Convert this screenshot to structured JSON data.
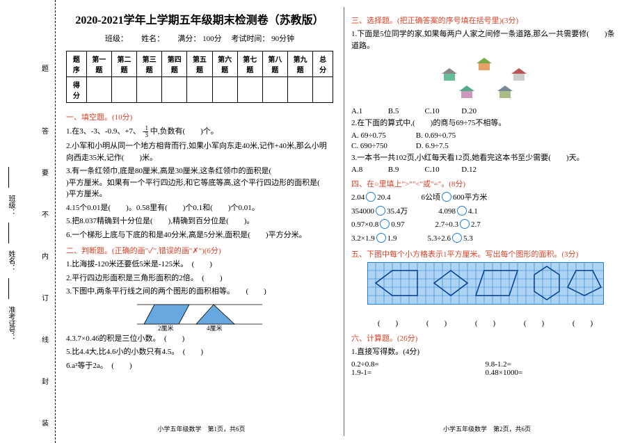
{
  "binding": {
    "labels": [
      "准考证号：",
      "姓名：",
      "班级："
    ],
    "sidechars": [
      "装",
      "封",
      "线",
      "内",
      "不",
      "要",
      "答",
      "题",
      "订"
    ]
  },
  "title": "2020-2021学年上学期五年级期末检测卷（苏教版）",
  "subtitle_parts": {
    "class": "班级：",
    "name": "姓名：",
    "full": "满分：",
    "full_val": "100分",
    "time": "考试时间：",
    "time_val": "90分钟"
  },
  "score_table": {
    "headers": [
      "题序",
      "第一题",
      "第二题",
      "第三题",
      "第四题",
      "第五题",
      "第六题",
      "第七题",
      "第八题",
      "第九题",
      "总分"
    ],
    "row_label": "得分"
  },
  "sections": {
    "s1": {
      "heading": "一、填空题。(10分)",
      "q1a": "1.在3、-3、-0.9、+7、",
      "q1b": "中,负数有(　　)个。",
      "q2": "2.小军和小明从同一个地方相背而行,如果小军向东走40米,记作+40米,那么小明向西走35米,记作(　　)米。",
      "q3a": "3.有一条红领巾,底是80厘米,高是30厘米,这条红领巾的面积是(　　",
      "q3b": ")平方厘米。如果有一个平行四边形,和它等底等高,这个平行四边形的面积是(　　",
      "q3c": ")平方厘米。",
      "q4": "4.15个0.01是(　　)。0.58里有(　　)个0.1和(　　)个0.01。",
      "q5": "5.把8.037精确到十分位是(　　),精确到百分位是(　　)。",
      "q6": "6.一个梯形上底与下底的和是40分米,高是5分米,面积是(　　)平方分米。"
    },
    "s2": {
      "heading": "二、判断题。(正确的画\"✓\",错误的画\"✗\")(6分)",
      "q1": "1.比海拔-120米还要低5米是-125米。　(　　)",
      "q2": "2.平行四边形面积是三角形面积的2倍。　(　　)",
      "q3": "3.下图中,两条平行线之间的两个图形的面积相等。　　(　　)",
      "q3_labels": {
        "a": "2厘米",
        "b": "4厘米"
      },
      "q4": "4.3.7×0.46的积是三位小数。　(　　)",
      "q5": "5.比4.4大,比4.6小的小数只有4.5。　(　　)",
      "q6a": "6.a²等于2a。　(　　)"
    },
    "s3": {
      "heading": "三、选择题。(把正确答案的序号填在括号里)(3分)",
      "q1a": "1.下面是5位同学的家,如果每两户人家之间修一条道路,那么一共需要修(　　)条道路。",
      "q1_choices": {
        "A": "A.1",
        "B": "B.5",
        "C": "C.10",
        "D": "D.20"
      },
      "q2a": "2.在下面的算式中,(　　)的商与69÷75不相等。",
      "q2_choices": {
        "A": "A. 69÷0.75",
        "B": "B. 0.69÷0.75",
        "C": "C. 690÷750",
        "D": "D. 6.9÷7.5"
      },
      "q3a": "3.一本书一共102页,小红每天看12页,她看完这本书至少需要(　　)天。",
      "q3_choices": {
        "A": "A.8",
        "B": "B.9",
        "C": "C.10",
        "D": "D.12"
      }
    },
    "s4": {
      "heading": "四、在○里填上\">\"\"<\"或\"=\"。(8分)",
      "rows": [
        {
          "a": "2.04",
          "b": "20.4",
          "c": "6公顷",
          "d": "600平方米"
        },
        {
          "a": "354000",
          "b": "35.4万",
          "c": "4.098",
          "d": "4.1"
        },
        {
          "a": "0.97×0.8",
          "b": "0.97",
          "c": "2.7÷0.3",
          "d": "2.7"
        },
        {
          "a": "3.2×1.9",
          "b": "1.9",
          "c": "5.3÷2.6",
          "d": "5.3"
        }
      ]
    },
    "s5": {
      "heading": "五、下图中每个小方格表示1平方厘米。写出每个图形的面积。(3分)"
    },
    "s6": {
      "heading": "六、计算题。(26分)",
      "sub1": "1.直接写得数。(4分)",
      "calcs": [
        {
          "a": "0.2÷0.8=",
          "b": "9.8-1.2="
        },
        {
          "a": "1.9-1=",
          "b": "0.48×1000="
        }
      ]
    }
  },
  "footer": {
    "left": "小学五年级数学　第1页，共6页",
    "right": "小学五年级数学　第2页，共6页"
  },
  "fraction": {
    "num": "1",
    "den": "3",
    "sign": "-"
  },
  "colors": {
    "accent": "#d9432a",
    "circle": "#1e7fd6",
    "grid": "#1e7fd6",
    "fill": "#67a8e0"
  }
}
